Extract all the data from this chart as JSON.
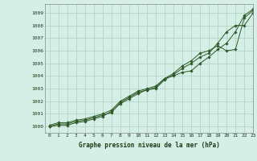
{
  "title": "Graphe pression niveau de la mer (hPa)",
  "bg_color": "#d5eee6",
  "grid_color": "#b8d8cc",
  "line_color": "#2d5a27",
  "xlim": [
    -0.5,
    23
  ],
  "ylim": [
    999.5,
    1009.7
  ],
  "yticks": [
    1000,
    1001,
    1002,
    1003,
    1004,
    1005,
    1006,
    1007,
    1008,
    1009
  ],
  "xticks": [
    0,
    1,
    2,
    3,
    4,
    5,
    6,
    7,
    8,
    9,
    10,
    11,
    12,
    13,
    14,
    15,
    16,
    17,
    18,
    19,
    20,
    21,
    22,
    23
  ],
  "series1": {
    "x": [
      0,
      1,
      2,
      3,
      4,
      5,
      6,
      7,
      8,
      9,
      10,
      11,
      12,
      13,
      14,
      15,
      16,
      17,
      18,
      19,
      20,
      21,
      22,
      23
    ],
    "y": [
      1000.1,
      1000.3,
      1000.3,
      1000.5,
      1000.6,
      1000.8,
      1001.0,
      1001.3,
      1002.0,
      1002.4,
      1002.8,
      1003.0,
      1003.2,
      1003.8,
      1004.0,
      1004.3,
      1004.4,
      1005.0,
      1005.5,
      1006.1,
      1006.6,
      1007.5,
      1008.8,
      1009.3
    ]
  },
  "series2": {
    "x": [
      0,
      1,
      2,
      3,
      4,
      5,
      6,
      7,
      8,
      9,
      10,
      11,
      12,
      13,
      14,
      15,
      16,
      17,
      18,
      19,
      20,
      21,
      22,
      23
    ],
    "y": [
      1000.0,
      1000.2,
      1000.2,
      1000.4,
      1000.5,
      1000.7,
      1000.9,
      1001.1,
      1001.9,
      1002.3,
      1002.7,
      1002.9,
      1003.1,
      1003.8,
      1004.2,
      1004.8,
      1005.2,
      1005.8,
      1006.0,
      1006.4,
      1006.0,
      1006.1,
      1008.6,
      1009.2
    ]
  },
  "series3": {
    "x": [
      0,
      1,
      2,
      3,
      4,
      5,
      6,
      7,
      8,
      9,
      10,
      11,
      12,
      13,
      14,
      15,
      16,
      17,
      18,
      19,
      20,
      21,
      22,
      23
    ],
    "y": [
      1000.0,
      1000.1,
      1000.1,
      1000.3,
      1000.4,
      1000.6,
      1000.8,
      1001.2,
      1001.8,
      1002.2,
      1002.6,
      1002.9,
      1003.0,
      1003.7,
      1004.1,
      1004.6,
      1005.0,
      1005.5,
      1005.8,
      1006.6,
      1007.5,
      1008.0,
      1008.0,
      1009.0
    ]
  }
}
